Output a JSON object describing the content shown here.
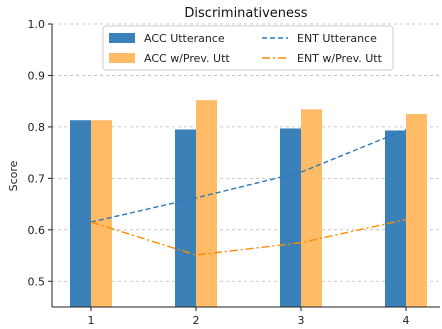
{
  "chart_data": {
    "type": "bar",
    "title": "Discriminativeness",
    "xlabel": "",
    "ylabel": "Score",
    "categories": [
      "1",
      "2",
      "3",
      "4"
    ],
    "ylim": [
      0.45,
      1.0
    ],
    "yticks": [
      "0.5",
      "0.6",
      "0.7",
      "0.8",
      "0.9",
      "1.0"
    ],
    "grid": true,
    "legend_position": "top",
    "series": [
      {
        "name": "ACC Utterance",
        "kind": "bar",
        "color": "#3a80b9",
        "values": [
          0.813,
          0.795,
          0.797,
          0.793
        ]
      },
      {
        "name": "ACC w/Prev. Utt",
        "kind": "bar",
        "color": "#ffbb66",
        "values": [
          0.813,
          0.852,
          0.834,
          0.825
        ]
      },
      {
        "name": "ENT Utterance",
        "kind": "line",
        "style": "dashed",
        "color": "#2a78b5",
        "values": [
          0.615,
          0.662,
          0.712,
          0.795
        ]
      },
      {
        "name": "ENT w/Prev. Utt",
        "kind": "line",
        "style": "dashdot",
        "color": "#ff8c00",
        "values": [
          0.615,
          0.551,
          0.575,
          0.62
        ]
      }
    ]
  }
}
